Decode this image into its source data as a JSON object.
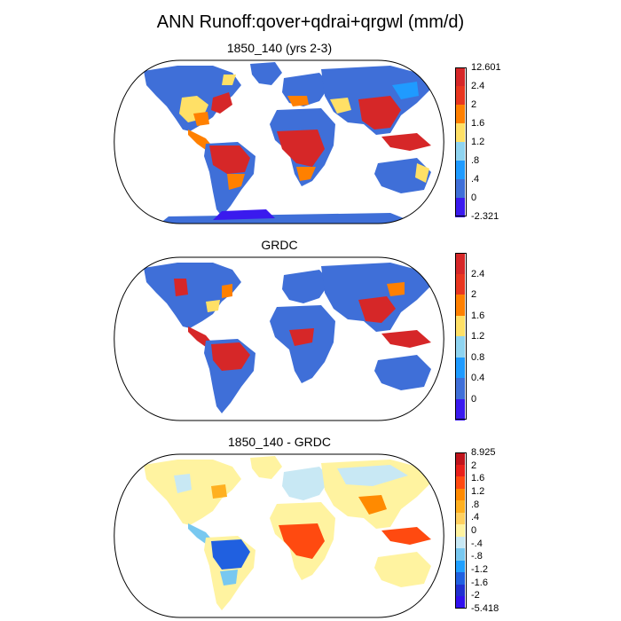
{
  "title": "ANN Runoff:qover+qdrai+qrgwl (mm/d)",
  "panels": [
    {
      "title": "1850_140 (yrs 2-3)",
      "colorbar": {
        "labels": [
          "12.601",
          "2.4",
          "2",
          "1.6",
          "1.2",
          ".8",
          ".4",
          "0",
          "-2.321"
        ],
        "colors": [
          "#d62728",
          "#e8361f",
          "#ff8000",
          "#ffe066",
          "#8fd4f0",
          "#1f9bff",
          "#3f6fd8",
          "#3a1aee"
        ]
      }
    },
    {
      "title": "GRDC",
      "colorbar": {
        "labels": [
          "2.4",
          "2",
          "1.6",
          "1.2",
          "0.8",
          "0.4",
          "0"
        ],
        "colors": [
          "#d62728",
          "#e8361f",
          "#ff8000",
          "#ffe066",
          "#8fd4f0",
          "#1f9bff",
          "#3f6fd8",
          "#3a1aee"
        ]
      }
    },
    {
      "title": "1850_140 - GRDC",
      "colorbar": {
        "labels": [
          "8.925",
          "2",
          "1.6",
          "1.2",
          ".8",
          ".4",
          "0",
          "-.4",
          "-.8",
          "-1.2",
          "-1.6",
          "-2",
          "-5.418"
        ],
        "colors": [
          "#c0141c",
          "#e8201a",
          "#ff4a10",
          "#ff8a00",
          "#ffb020",
          "#ffd060",
          "#fff3a0",
          "#c8e8f4",
          "#78c8f0",
          "#20a0ff",
          "#2060e0",
          "#2030d0",
          "#3010ee"
        ]
      }
    }
  ]
}
